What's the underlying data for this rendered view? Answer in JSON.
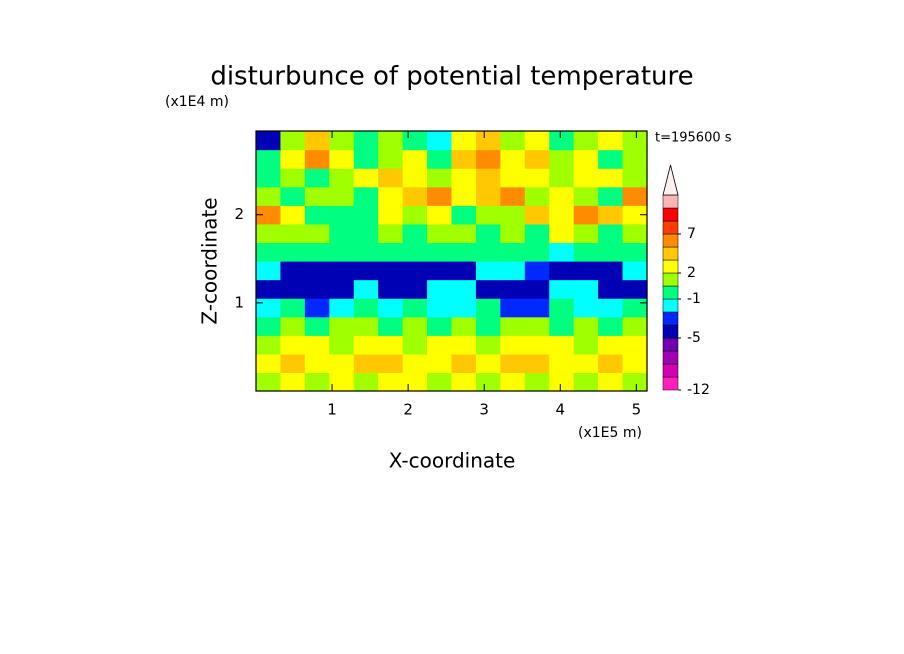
{
  "chart_data": {
    "type": "contour",
    "title": "disturbunce of potential temperature",
    "time_label": "t=195600 s",
    "x_label": "X-coordinate",
    "y_label": "Z-coordinate",
    "x_scale_label": "(x1E5 m)",
    "y_scale_label": "(x1E4 m)",
    "xlim": [
      0,
      5.14
    ],
    "ylim": [
      0,
      2.95
    ],
    "xticks": [
      1,
      2,
      3,
      4,
      5
    ],
    "yticks": [
      1,
      2
    ],
    "z": [
      [
        1,
        2,
        1,
        2,
        1,
        2,
        2,
        1,
        2,
        1,
        2,
        1,
        2,
        1,
        2,
        1
      ],
      [
        2,
        3,
        2,
        2,
        4,
        3,
        2,
        2,
        3,
        2,
        4,
        3,
        2,
        2,
        3,
        2
      ],
      [
        1,
        2,
        2,
        1,
        2,
        2,
        1,
        2,
        2,
        1,
        2,
        2,
        2,
        1,
        2,
        2
      ],
      [
        0,
        1,
        0,
        1,
        1,
        0,
        1,
        0,
        1,
        0,
        1,
        1,
        0,
        1,
        0,
        1
      ],
      [
        -1.5,
        -1,
        -2.5,
        -1.5,
        -1,
        -1.5,
        -1,
        -1.5,
        -2,
        -1,
        -2.5,
        -3,
        -1,
        -1.5,
        -2,
        -1
      ],
      [
        -4,
        -4,
        -3.5,
        -4,
        -1.5,
        -4,
        -3.5,
        -1.5,
        -1.5,
        -4,
        -3.5,
        -4,
        -1.5,
        -1.5,
        -4,
        -4
      ],
      [
        -1.5,
        -4,
        -4,
        -4,
        -4,
        -4,
        -4,
        -4,
        -4,
        -1.5,
        -1.5,
        -2.5,
        -4,
        -4,
        -4,
        -1.5
      ],
      [
        0,
        0,
        -0.5,
        0,
        0,
        0,
        -0.5,
        0,
        0,
        0.5,
        -0.5,
        0,
        -1.5,
        0,
        0,
        0
      ],
      [
        1,
        1.5,
        1.5,
        0,
        0,
        1,
        0,
        1.5,
        1.5,
        0,
        1.5,
        0.5,
        2.5,
        1.5,
        0,
        1
      ],
      [
        5,
        2,
        0,
        0,
        0.5,
        2,
        1.5,
        2.5,
        0,
        1.5,
        1.5,
        4,
        2.5,
        6,
        4,
        2
      ],
      [
        1.5,
        0,
        1.5,
        1,
        0,
        2,
        4,
        6,
        2,
        3,
        5,
        1.5,
        2,
        1.5,
        0,
        5
      ],
      [
        0,
        1.5,
        0,
        1.5,
        2.5,
        4,
        2,
        1.5,
        2.5,
        4,
        2,
        2,
        1.5,
        2.5,
        2,
        1
      ],
      [
        -1,
        2.5,
        5,
        2.5,
        0,
        1.5,
        2.5,
        0,
        4,
        6,
        2.5,
        4,
        1.5,
        2.5,
        0,
        1.5
      ],
      [
        -4,
        1.5,
        4,
        1.5,
        0,
        1.5,
        0,
        -1.5,
        2.5,
        4,
        1.5,
        2.5,
        0,
        1.5,
        2,
        1.5
      ]
    ],
    "colorbar": {
      "levels": [
        -12,
        -10,
        -8,
        -6,
        -5,
        -3,
        -2,
        -1,
        1,
        2,
        3,
        5,
        7,
        9,
        11,
        13
      ],
      "colors": [
        "#ff1fbf",
        "#d400b4",
        "#a000b4",
        "#7000b0",
        "#0000b4",
        "#0028ff",
        "#00ffff",
        "#00ff80",
        "#a0ff00",
        "#ffff00",
        "#ffc800",
        "#ff8c00",
        "#ff3c00",
        "#ff0000",
        "#ffb4b4",
        "#fff0f0"
      ],
      "ticks": [
        -12,
        -5,
        -1,
        2,
        7
      ]
    }
  }
}
